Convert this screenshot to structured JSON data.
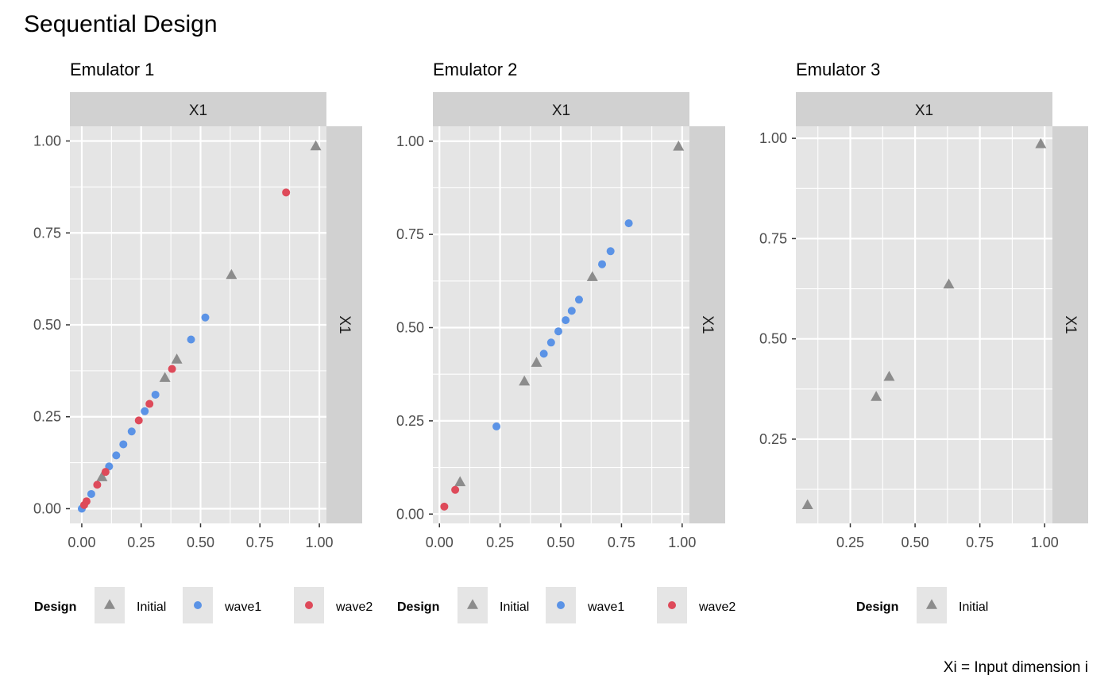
{
  "title": "Sequential Design",
  "caption": "Xi = Input dimension i",
  "colors": {
    "Initial": "#8c8c8c",
    "wave1": "#5b93e6",
    "wave2": "#de4a5a",
    "panel_bg": "#e5e5e5",
    "strip_bg": "#d1d1d1"
  },
  "chart_data": [
    {
      "type": "scatter",
      "subtitle": "Emulator 1",
      "facet_col": "X1",
      "facet_row": "X1",
      "xlim": [
        -0.05,
        1.03
      ],
      "ylim": [
        -0.04,
        1.04
      ],
      "x_ticks": [
        "0.00",
        "0.25",
        "0.50",
        "0.75",
        "1.00"
      ],
      "x_tick_values": [
        0,
        0.25,
        0.5,
        0.75,
        1
      ],
      "y_ticks": [
        "0.00",
        "0.25",
        "0.50",
        "0.75",
        "1.00"
      ],
      "y_tick_values": [
        0,
        0.25,
        0.5,
        0.75,
        1
      ],
      "legend_title": "Design",
      "legend": [
        "Initial",
        "wave1",
        "wave2"
      ],
      "series": [
        {
          "name": "Initial",
          "shape": "triangle",
          "x": [
            0.085,
            0.35,
            0.4,
            0.63,
            0.985
          ],
          "y": [
            0.085,
            0.355,
            0.405,
            0.635,
            0.985
          ]
        },
        {
          "name": "wave1",
          "shape": "circle",
          "x": [
            0.0,
            0.04,
            0.115,
            0.145,
            0.175,
            0.21,
            0.265,
            0.31,
            0.46,
            0.52
          ],
          "y": [
            0.0,
            0.04,
            0.115,
            0.145,
            0.175,
            0.21,
            0.265,
            0.31,
            0.46,
            0.52
          ]
        },
        {
          "name": "wave2",
          "shape": "circle",
          "x": [
            0.01,
            0.02,
            0.065,
            0.1,
            0.24,
            0.285,
            0.38,
            0.86
          ],
          "y": [
            0.01,
            0.02,
            0.065,
            0.1,
            0.24,
            0.285,
            0.38,
            0.86
          ]
        }
      ]
    },
    {
      "type": "scatter",
      "subtitle": "Emulator 2",
      "facet_col": "X1",
      "facet_row": "X1",
      "xlim": [
        -0.027,
        1.03
      ],
      "ylim": [
        -0.025,
        1.04
      ],
      "x_ticks": [
        "0.00",
        "0.25",
        "0.50",
        "0.75",
        "1.00"
      ],
      "x_tick_values": [
        0,
        0.25,
        0.5,
        0.75,
        1
      ],
      "y_ticks": [
        "0.00",
        "0.25",
        "0.50",
        "0.75",
        "1.00"
      ],
      "y_tick_values": [
        0,
        0.25,
        0.5,
        0.75,
        1
      ],
      "legend_title": "Design",
      "legend": [
        "Initial",
        "wave1",
        "wave2"
      ],
      "series": [
        {
          "name": "Initial",
          "shape": "triangle",
          "x": [
            0.085,
            0.35,
            0.4,
            0.63,
            0.985
          ],
          "y": [
            0.085,
            0.355,
            0.405,
            0.635,
            0.985
          ]
        },
        {
          "name": "wave1",
          "shape": "circle",
          "x": [
            0.235,
            0.43,
            0.46,
            0.49,
            0.52,
            0.545,
            0.575,
            0.67,
            0.705,
            0.78
          ],
          "y": [
            0.235,
            0.43,
            0.46,
            0.49,
            0.52,
            0.545,
            0.575,
            0.67,
            0.705,
            0.78
          ]
        },
        {
          "name": "wave2",
          "shape": "circle",
          "x": [
            0.02,
            0.065
          ],
          "y": [
            0.02,
            0.065
          ]
        }
      ]
    },
    {
      "type": "scatter",
      "subtitle": "Emulator 3",
      "facet_col": "X1",
      "facet_row": "X1",
      "xlim": [
        0.04,
        1.03
      ],
      "ylim": [
        0.04,
        1.03
      ],
      "x_ticks": [
        "0.25",
        "0.50",
        "0.75",
        "1.00"
      ],
      "x_tick_values": [
        0.25,
        0.5,
        0.75,
        1
      ],
      "y_ticks": [
        "0.25",
        "0.50",
        "0.75",
        "1.00"
      ],
      "y_tick_values": [
        0.25,
        0.5,
        0.75,
        1
      ],
      "legend_title": "Design",
      "legend": [
        "Initial"
      ],
      "series": [
        {
          "name": "Initial",
          "shape": "triangle",
          "x": [
            0.085,
            0.35,
            0.4,
            0.63,
            0.985
          ],
          "y": [
            0.085,
            0.355,
            0.405,
            0.635,
            0.985
          ]
        }
      ]
    }
  ]
}
